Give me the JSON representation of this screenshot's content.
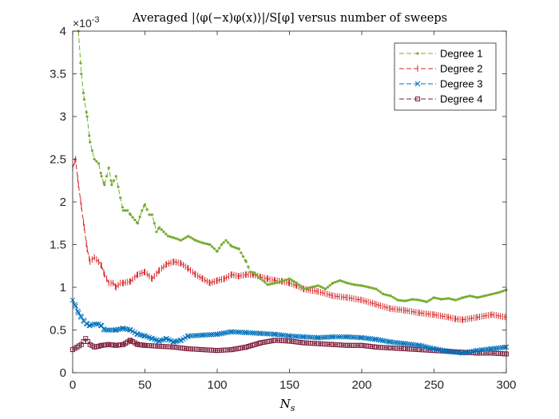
{
  "chart_data": {
    "type": "line",
    "title": "Averaged |⟨φ(−x)φ(x)⟩|/S[φ] versus number of sweeps",
    "xlabel": "N",
    "xlabel_sub": "s",
    "ylabel": "",
    "y_scale_label": "×10",
    "y_scale_exponent": "-3",
    "xlim": [
      0,
      300
    ],
    "ylim": [
      0,
      4
    ],
    "x_ticks": [
      0,
      50,
      100,
      150,
      200,
      250,
      300
    ],
    "x_tick_labels": [
      "0",
      "50",
      "100",
      "150",
      "200",
      "250",
      "300"
    ],
    "y_ticks": [
      0,
      0.5,
      1,
      1.5,
      2,
      2.5,
      3,
      3.5,
      4
    ],
    "y_tick_labels": [
      "0",
      "0.5",
      "1",
      "1.5",
      "2",
      "2.5",
      "3",
      "3.5",
      "4"
    ],
    "legend_position": "top-right",
    "series": [
      {
        "name": "Degree 1",
        "color": "#77AC30",
        "marker": "dot",
        "x": [
          4,
          6,
          8,
          10,
          12,
          15,
          18,
          20,
          22,
          25,
          27,
          30,
          33,
          35,
          38,
          40,
          45,
          48,
          50,
          53,
          55,
          58,
          60,
          63,
          66,
          70,
          75,
          80,
          85,
          90,
          95,
          100,
          103,
          106,
          110,
          115,
          120,
          123,
          126,
          130,
          135,
          140,
          145,
          150,
          155,
          160,
          165,
          170,
          175,
          180,
          185,
          190,
          195,
          200,
          205,
          210,
          215,
          220,
          225,
          230,
          235,
          240,
          245,
          250,
          255,
          260,
          265,
          270,
          275,
          280,
          285,
          290,
          295,
          300
        ],
        "y": [
          4.0,
          3.5,
          3.2,
          3.0,
          2.7,
          2.5,
          2.45,
          2.3,
          2.2,
          2.4,
          2.2,
          2.3,
          2.05,
          1.9,
          1.9,
          1.85,
          1.75,
          1.9,
          1.97,
          1.85,
          1.85,
          1.65,
          1.7,
          1.65,
          1.6,
          1.58,
          1.55,
          1.6,
          1.55,
          1.52,
          1.5,
          1.42,
          1.5,
          1.55,
          1.48,
          1.45,
          1.3,
          1.18,
          1.17,
          1.1,
          1.03,
          1.05,
          1.07,
          1.1,
          1.05,
          0.98,
          1.0,
          1.02,
          0.98,
          1.05,
          1.08,
          1.05,
          1.03,
          1.02,
          1.0,
          0.98,
          0.92,
          0.9,
          0.85,
          0.84,
          0.86,
          0.85,
          0.83,
          0.88,
          0.86,
          0.87,
          0.85,
          0.88,
          0.9,
          0.88,
          0.9,
          0.92,
          0.94,
          0.97
        ]
      },
      {
        "name": "Degree 2",
        "color": "#D62728",
        "marker": "tick",
        "x": [
          0,
          2,
          4,
          6,
          8,
          10,
          12,
          15,
          18,
          20,
          22,
          25,
          28,
          30,
          33,
          35,
          40,
          45,
          50,
          55,
          60,
          65,
          70,
          75,
          80,
          85,
          90,
          95,
          100,
          105,
          110,
          115,
          120,
          125,
          130,
          135,
          140,
          145,
          150,
          155,
          160,
          170,
          180,
          190,
          200,
          210,
          220,
          230,
          240,
          250,
          260,
          265,
          270,
          280,
          290,
          300
        ],
        "y": [
          2.4,
          2.5,
          2.2,
          1.95,
          1.7,
          1.45,
          1.3,
          1.35,
          1.3,
          1.25,
          1.15,
          1.05,
          1.05,
          1.0,
          1.05,
          1.05,
          1.07,
          1.15,
          1.18,
          1.1,
          1.2,
          1.27,
          1.3,
          1.28,
          1.22,
          1.15,
          1.1,
          1.05,
          1.08,
          1.1,
          1.15,
          1.13,
          1.15,
          1.15,
          1.12,
          1.1,
          1.08,
          1.07,
          1.05,
          1.02,
          0.98,
          0.95,
          0.9,
          0.88,
          0.85,
          0.8,
          0.75,
          0.73,
          0.7,
          0.68,
          0.65,
          0.63,
          0.62,
          0.65,
          0.68,
          0.65
        ]
      },
      {
        "name": "Degree 3",
        "color": "#0072BD",
        "marker": "x",
        "x": [
          0,
          2,
          4,
          6,
          8,
          10,
          12,
          15,
          18,
          20,
          22,
          25,
          30,
          35,
          40,
          45,
          50,
          55,
          60,
          65,
          70,
          75,
          80,
          90,
          100,
          110,
          120,
          130,
          140,
          150,
          160,
          170,
          180,
          190,
          200,
          210,
          220,
          230,
          240,
          250,
          260,
          270,
          280,
          290,
          300
        ],
        "y": [
          0.85,
          0.78,
          0.7,
          0.65,
          0.6,
          0.57,
          0.55,
          0.57,
          0.57,
          0.55,
          0.5,
          0.5,
          0.5,
          0.52,
          0.5,
          0.45,
          0.43,
          0.4,
          0.37,
          0.4,
          0.36,
          0.38,
          0.43,
          0.44,
          0.45,
          0.48,
          0.47,
          0.46,
          0.45,
          0.43,
          0.42,
          0.41,
          0.42,
          0.42,
          0.41,
          0.39,
          0.36,
          0.34,
          0.32,
          0.28,
          0.25,
          0.23,
          0.26,
          0.28,
          0.3
        ]
      },
      {
        "name": "Degree 4",
        "color": "#7E1E3C",
        "marker": "square",
        "x": [
          0,
          3,
          6,
          9,
          12,
          15,
          18,
          20,
          25,
          30,
          35,
          40,
          45,
          50,
          60,
          70,
          80,
          90,
          100,
          110,
          120,
          130,
          140,
          150,
          160,
          170,
          180,
          190,
          200,
          210,
          220,
          230,
          240,
          250,
          260,
          270,
          280,
          290,
          300
        ],
        "y": [
          0.27,
          0.3,
          0.33,
          0.4,
          0.33,
          0.3,
          0.31,
          0.32,
          0.33,
          0.32,
          0.33,
          0.38,
          0.33,
          0.32,
          0.31,
          0.3,
          0.28,
          0.27,
          0.26,
          0.27,
          0.3,
          0.35,
          0.38,
          0.37,
          0.35,
          0.34,
          0.33,
          0.32,
          0.32,
          0.3,
          0.29,
          0.28,
          0.27,
          0.26,
          0.25,
          0.24,
          0.23,
          0.23,
          0.22
        ]
      }
    ]
  }
}
